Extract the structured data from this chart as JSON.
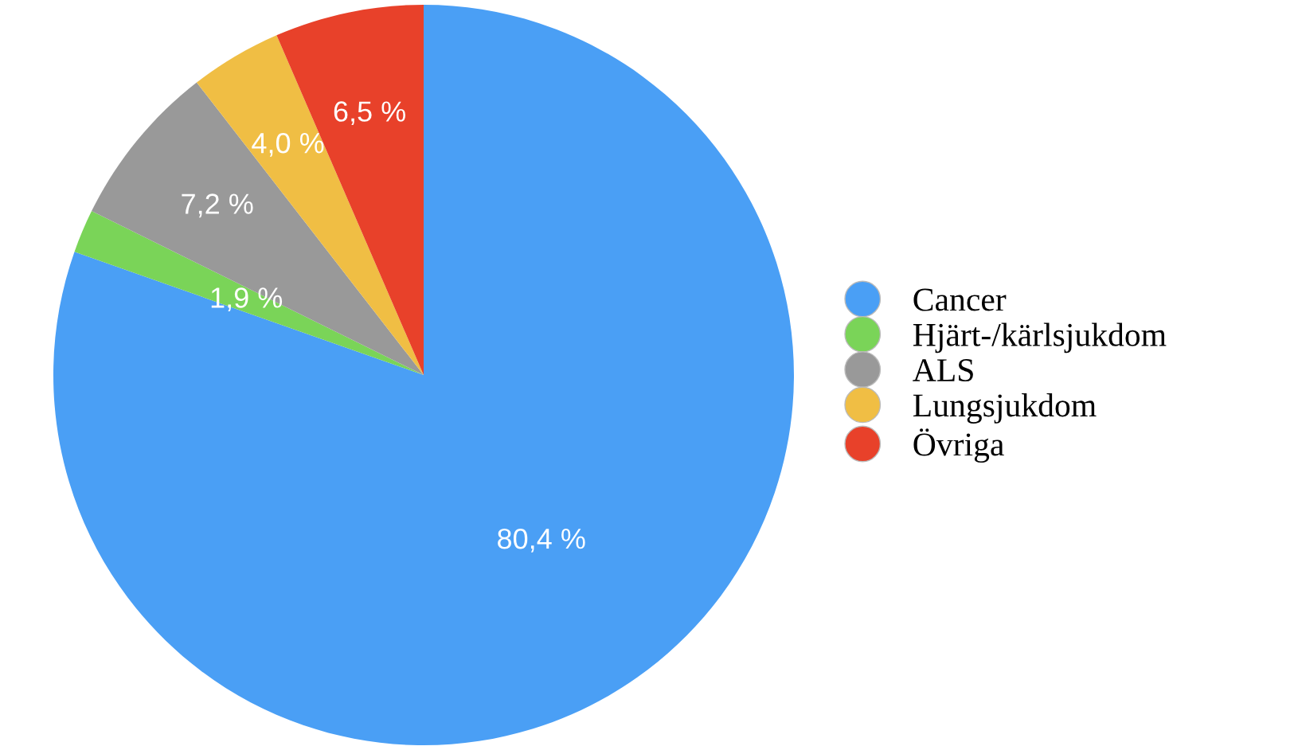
{
  "chart_data": {
    "type": "pie",
    "categories": [
      "Cancer",
      "Hjärt-/kärlsjukdom",
      "ALS",
      "Lungsjukdom",
      "Övriga"
    ],
    "values": [
      80.4,
      1.9,
      7.2,
      4.0,
      6.5
    ],
    "colors": [
      "#4a9ff5",
      "#7ad458",
      "#999999",
      "#f0be44",
      "#e8412a"
    ],
    "value_labels": [
      "80,4 %",
      "1,9 %",
      "7,2 %",
      "4,0 %",
      "6,5 %"
    ],
    "legend": "right"
  }
}
